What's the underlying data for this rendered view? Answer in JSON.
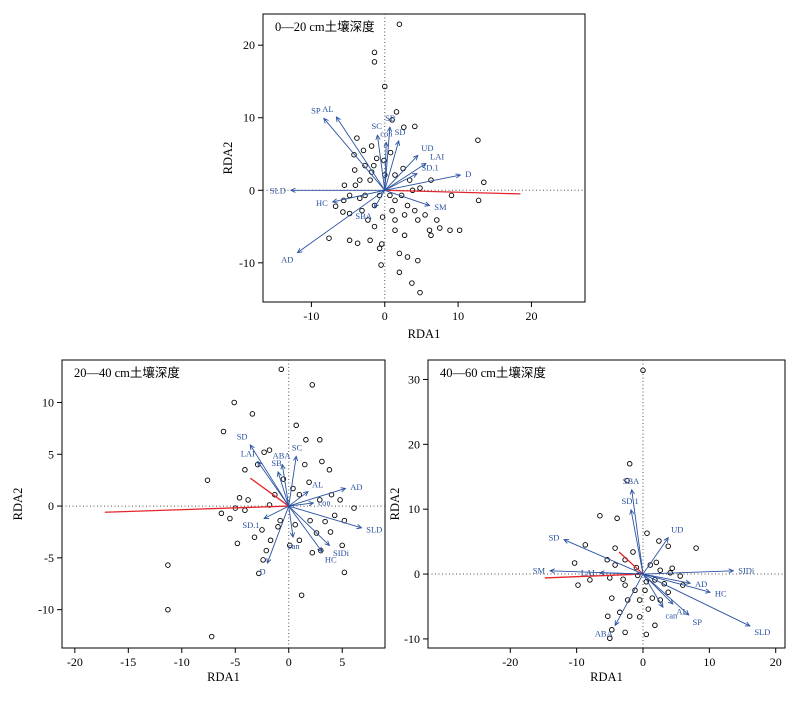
{
  "colors": {
    "arrow": "#2a52a0",
    "red_line": "#e3262c",
    "point": "#000000",
    "zero_line": "#555555"
  },
  "chart_data": [
    {
      "type": "scatter",
      "title": "0—20 cm土壤深度",
      "xlabel": "RDA1",
      "ylabel": "RDA2",
      "xlim": [
        -16.6,
        27.3
      ],
      "ylim": [
        -15.4,
        24.3
      ],
      "xticks": [
        -10,
        0,
        10,
        20
      ],
      "yticks": [
        -10,
        0,
        10,
        20
      ],
      "grid": false,
      "points": [
        [
          2.0,
          22.9
        ],
        [
          -1.4,
          19.0
        ],
        [
          -1.4,
          17.7
        ],
        [
          0.0,
          14.3
        ],
        [
          1.6,
          10.8
        ],
        [
          1.0,
          9.7
        ],
        [
          2.6,
          8.7
        ],
        [
          4.1,
          8.8
        ],
        [
          12.7,
          6.9
        ],
        [
          -3.8,
          7.2
        ],
        [
          -2.9,
          5.5
        ],
        [
          -1.8,
          6.1
        ],
        [
          -1.1,
          4.4
        ],
        [
          -0.1,
          4.1
        ],
        [
          -2.7,
          3.4
        ],
        [
          -1.8,
          2.5
        ],
        [
          -4.1,
          2.8
        ],
        [
          -3.4,
          1.4
        ],
        [
          -2.0,
          1.4
        ],
        [
          0.0,
          2.1
        ],
        [
          1.4,
          2.1
        ],
        [
          2.5,
          3.0
        ],
        [
          3.4,
          1.4
        ],
        [
          3.8,
          0.0
        ],
        [
          4.8,
          0.3
        ],
        [
          6.3,
          1.4
        ],
        [
          13.5,
          1.1
        ],
        [
          12.8,
          -1.4
        ],
        [
          9.1,
          -0.7
        ],
        [
          -3.4,
          -1.1
        ],
        [
          -5.6,
          -1.4
        ],
        [
          -5.7,
          -3.0
        ],
        [
          -6.7,
          -2.2
        ],
        [
          -4.8,
          -3.2
        ],
        [
          -3.1,
          -2.8
        ],
        [
          -2.3,
          -4.1
        ],
        [
          -1.4,
          -5.0
        ],
        [
          -0.3,
          -3.7
        ],
        [
          1.0,
          -2.8
        ],
        [
          2.7,
          -3.4
        ],
        [
          4.5,
          -4.1
        ],
        [
          1.4,
          -5.5
        ],
        [
          2.7,
          -6.2
        ],
        [
          -2.0,
          -6.9
        ],
        [
          -4.8,
          -6.9
        ],
        [
          -7.6,
          -6.6
        ],
        [
          -0.4,
          -7.4
        ],
        [
          -0.7,
          -8.0
        ],
        [
          2.0,
          -8.7
        ],
        [
          3.1,
          -9.2
        ],
        [
          4.5,
          -9.7
        ],
        [
          6.1,
          -5.5
        ],
        [
          7.5,
          -5.2
        ],
        [
          8.9,
          -5.5
        ],
        [
          -0.5,
          -10.3
        ],
        [
          2.0,
          -11.3
        ],
        [
          3.7,
          -12.8
        ],
        [
          4.8,
          -14.1
        ],
        [
          -3.7,
          -7.3
        ],
        [
          -4.8,
          -0.7
        ],
        [
          -5.5,
          0.7
        ],
        [
          -2.7,
          -0.7
        ],
        [
          -0.7,
          -0.7
        ],
        [
          0.7,
          -0.7
        ],
        [
          1.4,
          -1.4
        ],
        [
          2.3,
          -0.7
        ],
        [
          3.1,
          -2.1
        ],
        [
          4.1,
          -2.8
        ],
        [
          5.5,
          -3.4
        ],
        [
          7.1,
          -4.1
        ],
        [
          6.3,
          -6.2
        ],
        [
          10.2,
          -5.5
        ],
        [
          1.4,
          -4.1
        ],
        [
          -1.4,
          -2.1
        ],
        [
          -4.0,
          0.7
        ],
        [
          -1.5,
          3.4
        ],
        [
          0.8,
          5.2
        ],
        [
          -4.2,
          4.9
        ]
      ],
      "arrows": [
        {
          "label": "SP",
          "x": -8.3,
          "y": 9.9
        },
        {
          "label": "AL",
          "x": -6.6,
          "y": 10.1
        },
        {
          "label": "SC",
          "x": -1.0,
          "y": 7.6
        },
        {
          "label": "SB",
          "x": 0.7,
          "y": 8.7
        },
        {
          "label": "con",
          "x": 0.2,
          "y": 6.6
        },
        {
          "label": "SD",
          "x": 1.9,
          "y": 6.8
        },
        {
          "label": "UD",
          "x": 4.5,
          "y": 4.8
        },
        {
          "label": "LAI",
          "x": 5.6,
          "y": 3.7
        },
        {
          "label": "SD.1",
          "x": 4.4,
          "y": 2.3
        },
        {
          "label": "D",
          "x": 10.3,
          "y": 2.1
        },
        {
          "label": "SLD",
          "x": -12.8,
          "y": 0.0
        },
        {
          "label": "HC",
          "x": -7.1,
          "y": -1.6
        },
        {
          "label": "SM",
          "x": 6.1,
          "y": -2.1
        },
        {
          "label": "SBA",
          "x": -1.4,
          "y": -2.4
        },
        {
          "label": "AD",
          "x": -11.9,
          "y": -8.6
        }
      ],
      "red_lines": [
        [
          18.5,
          -0.5
        ]
      ]
    },
    {
      "type": "scatter",
      "title": "20—40 cm土壤深度",
      "xlabel": "RDA1",
      "ylabel": "RDA2",
      "xlim": [
        -21.2,
        9.0
      ],
      "ylim": [
        -13.7,
        14.1
      ],
      "xticks": [
        -20,
        -15,
        -10,
        -5,
        0,
        5
      ],
      "yticks": [
        -10,
        -5,
        0,
        5,
        10
      ],
      "grid": false,
      "points": [
        [
          -0.7,
          13.2
        ],
        [
          2.2,
          11.7
        ],
        [
          -5.1,
          10.0
        ],
        [
          -6.1,
          7.2
        ],
        [
          -3.4,
          8.9
        ],
        [
          0.7,
          7.8
        ],
        [
          1.6,
          6.4
        ],
        [
          2.9,
          6.4
        ],
        [
          -1.8,
          5.4
        ],
        [
          -2.3,
          5.2
        ],
        [
          -2.9,
          4.0
        ],
        [
          -4.1,
          3.5
        ],
        [
          1.5,
          4.0
        ],
        [
          3.1,
          4.3
        ],
        [
          3.8,
          3.5
        ],
        [
          -7.6,
          2.5
        ],
        [
          -4.6,
          0.8
        ],
        [
          -3.8,
          0.6
        ],
        [
          -4.1,
          -0.4
        ],
        [
          -5.0,
          -0.2
        ],
        [
          -6.3,
          -0.7
        ],
        [
          -5.5,
          -1.2
        ],
        [
          -1.8,
          0.1
        ],
        [
          -1.3,
          1.1
        ],
        [
          1.0,
          1.1
        ],
        [
          2.9,
          0.6
        ],
        [
          4.0,
          1.1
        ],
        [
          4.8,
          0.6
        ],
        [
          4.3,
          -0.9
        ],
        [
          5.2,
          -1.4
        ],
        [
          3.4,
          -1.5
        ],
        [
          2.0,
          -1.4
        ],
        [
          0.6,
          -1.8
        ],
        [
          -0.8,
          -1.4
        ],
        [
          -2.5,
          -2.3
        ],
        [
          -1.7,
          -3.3
        ],
        [
          -4.8,
          -3.6
        ],
        [
          -2.4,
          -5.2
        ],
        [
          -2.1,
          -4.3
        ],
        [
          0.1,
          -3.8
        ],
        [
          1.0,
          -3.3
        ],
        [
          2.2,
          -4.5
        ],
        [
          3.0,
          -4.3
        ],
        [
          5.2,
          -6.4
        ],
        [
          5.0,
          -3.8
        ],
        [
          -2.8,
          -6.5
        ],
        [
          1.2,
          -8.6
        ],
        [
          -11.3,
          -5.7
        ],
        [
          -11.3,
          -10.0
        ],
        [
          -7.2,
          -12.6
        ],
        [
          6.1,
          -0.2
        ],
        [
          0.4,
          1.7
        ],
        [
          -0.5,
          2.6
        ],
        [
          1.9,
          2.3
        ],
        [
          -1.0,
          -2.0
        ],
        [
          2.6,
          -2.6
        ],
        [
          3.9,
          -2.5
        ],
        [
          -3.2,
          -3.0
        ]
      ],
      "arrows": [
        {
          "label": "SD",
          "x": -3.6,
          "y": 5.9
        },
        {
          "label": "LAI",
          "x": -2.9,
          "y": 4.3
        },
        {
          "label": "SB",
          "x": -1.0,
          "y": 3.3
        },
        {
          "label": "ABA",
          "x": -0.6,
          "y": 4.0
        },
        {
          "label": "SC",
          "x": 0.7,
          "y": 4.8
        },
        {
          "label": "AD",
          "x": 5.3,
          "y": 1.7
        },
        {
          "label": "AL",
          "x": 1.8,
          "y": 1.4
        },
        {
          "label": "con",
          "x": 2.3,
          "y": 0.3
        },
        {
          "label": "SLD",
          "x": 6.8,
          "y": -2.1
        },
        {
          "label": "SD.1",
          "x": -2.3,
          "y": -1.2
        },
        {
          "label": "SIDi",
          "x": 3.8,
          "y": -3.8
        },
        {
          "label": "HC",
          "x": 3.1,
          "y": -4.4
        },
        {
          "label": "D",
          "x": -2.0,
          "y": -5.5
        },
        {
          "label": "can",
          "x": 0.4,
          "y": -3.0
        }
      ],
      "red_lines": [
        [
          -17.2,
          -0.6
        ],
        [
          -3.6,
          2.7
        ]
      ]
    },
    {
      "type": "scatter",
      "title": "40—60 cm土壤深度",
      "xlabel": "RDA1",
      "ylabel": "RDA2",
      "xlim": [
        -32.4,
        21.4
      ],
      "ylim": [
        -11.4,
        33.0
      ],
      "xticks": [
        -20,
        -10,
        0,
        10,
        20
      ],
      "yticks": [
        -10,
        0,
        10,
        20,
        30
      ],
      "grid": false,
      "points": [
        [
          0.0,
          31.4
        ],
        [
          -2.0,
          17.0
        ],
        [
          -2.4,
          14.4
        ],
        [
          -6.5,
          9.0
        ],
        [
          -3.9,
          8.6
        ],
        [
          0.6,
          6.3
        ],
        [
          3.8,
          4.3
        ],
        [
          8.0,
          4.0
        ],
        [
          2.4,
          5.1
        ],
        [
          -8.7,
          4.5
        ],
        [
          -10.3,
          1.7
        ],
        [
          -5.4,
          2.2
        ],
        [
          -4.2,
          1.4
        ],
        [
          -2.7,
          2.2
        ],
        [
          -1.5,
          3.4
        ],
        [
          -4.2,
          4.0
        ],
        [
          1.1,
          1.4
        ],
        [
          2.6,
          0.6
        ],
        [
          4.1,
          0.2
        ],
        [
          5.6,
          -0.3
        ],
        [
          -5.0,
          -0.6
        ],
        [
          -9.8,
          -1.7
        ],
        [
          -2.7,
          -1.7
        ],
        [
          -1.2,
          -2.5
        ],
        [
          0.3,
          -2.5
        ],
        [
          1.4,
          -3.7
        ],
        [
          -0.5,
          -4.0
        ],
        [
          -2.3,
          -4.0
        ],
        [
          2.6,
          -4.0
        ],
        [
          3.8,
          -2.8
        ],
        [
          6.0,
          -1.7
        ],
        [
          -4.7,
          -3.7
        ],
        [
          -3.5,
          -5.9
        ],
        [
          -2.0,
          -6.5
        ],
        [
          -0.5,
          -6.6
        ],
        [
          0.8,
          -5.4
        ],
        [
          -4.7,
          -8.6
        ],
        [
          -2.7,
          -9.0
        ],
        [
          0.5,
          -9.3
        ],
        [
          -5.3,
          -6.5
        ],
        [
          1.8,
          -7.9
        ],
        [
          -8.0,
          -0.9
        ],
        [
          -0.8,
          -0.2
        ],
        [
          1.8,
          -0.9
        ],
        [
          4.4,
          0.9
        ],
        [
          -5.0,
          -9.9
        ],
        [
          -1.0,
          1.0
        ],
        [
          0.5,
          -1.2
        ],
        [
          2.0,
          1.8
        ],
        [
          3.2,
          -1.5
        ],
        [
          -3.0,
          -0.8
        ]
      ],
      "arrows": [
        {
          "label": "SBA",
          "x": -1.7,
          "y": 13.0
        },
        {
          "label": "SD.1",
          "x": -1.8,
          "y": 9.9
        },
        {
          "label": "SD",
          "x": -11.9,
          "y": 5.3
        },
        {
          "label": "UD",
          "x": 3.8,
          "y": 5.6
        },
        {
          "label": "SM",
          "x": -14.0,
          "y": 0.5
        },
        {
          "label": "LAI",
          "x": -6.5,
          "y": 0.2
        },
        {
          "label": "SIDi",
          "x": 13.6,
          "y": 0.5
        },
        {
          "label": "AD",
          "x": 7.1,
          "y": -1.4
        },
        {
          "label": "HC",
          "x": 10.1,
          "y": -2.8
        },
        {
          "label": "SLD",
          "x": 16.1,
          "y": -8.0
        },
        {
          "label": "AL",
          "x": 4.5,
          "y": -4.6
        },
        {
          "label": "SP",
          "x": 6.9,
          "y": -6.3
        },
        {
          "label": "can",
          "x": 3.0,
          "y": -5.1
        },
        {
          "label": "ABA",
          "x": -4.2,
          "y": -7.9
        }
      ],
      "red_lines": [
        [
          -14.8,
          -0.6
        ],
        [
          -3.6,
          3.4
        ]
      ]
    }
  ]
}
